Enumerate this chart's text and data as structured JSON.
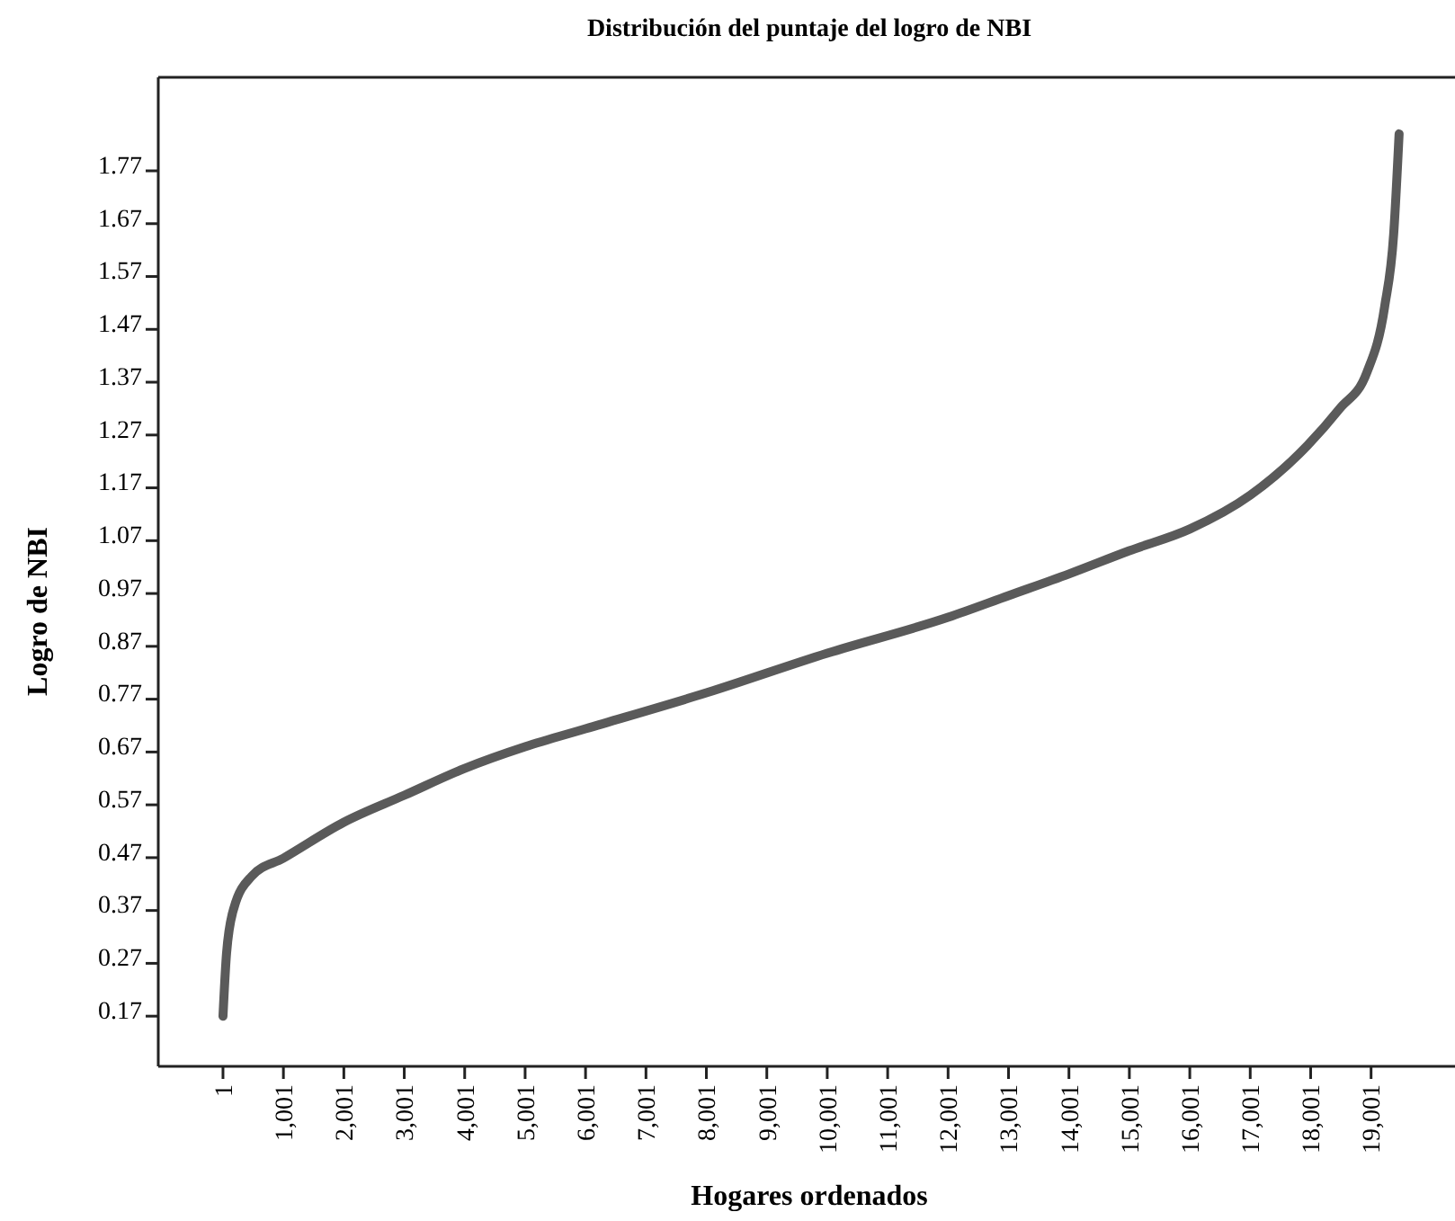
{
  "chart_data": {
    "type": "line",
    "title": "Distribución del puntaje del logro de NBI",
    "xlabel": "Hogares ordenados",
    "ylabel": "Logro de NBI",
    "xlim": [
      -1070,
      20390
    ],
    "ylim": [
      0.075,
      1.947
    ],
    "xticks": [
      {
        "value": 1,
        "label": "1"
      },
      {
        "value": 1001,
        "label": "1,001"
      },
      {
        "value": 2001,
        "label": "2,001"
      },
      {
        "value": 3001,
        "label": "3,001"
      },
      {
        "value": 4001,
        "label": "4,001"
      },
      {
        "value": 5001,
        "label": "5,001"
      },
      {
        "value": 6001,
        "label": "6,001"
      },
      {
        "value": 7001,
        "label": "7,001"
      },
      {
        "value": 8001,
        "label": "8,001"
      },
      {
        "value": 9001,
        "label": "9,001"
      },
      {
        "value": 10001,
        "label": "10,001"
      },
      {
        "value": 11001,
        "label": "11,001"
      },
      {
        "value": 12001,
        "label": "12,001"
      },
      {
        "value": 13001,
        "label": "13,001"
      },
      {
        "value": 14001,
        "label": "14,001"
      },
      {
        "value": 15001,
        "label": "15,001"
      },
      {
        "value": 16001,
        "label": "16,001"
      },
      {
        "value": 17001,
        "label": "17,001"
      },
      {
        "value": 18001,
        "label": "18,001"
      },
      {
        "value": 19001,
        "label": "19,001"
      }
    ],
    "yticks": [
      0.17,
      0.27,
      0.37,
      0.47,
      0.57,
      0.67,
      0.77,
      0.87,
      0.97,
      1.07,
      1.17,
      1.27,
      1.37,
      1.47,
      1.57,
      1.67,
      1.77
    ],
    "grid": false,
    "marker": "none",
    "line_style": "solid",
    "x": [
      1,
      60,
      180,
      477,
      1001,
      2001,
      3001,
      4001,
      5001,
      6001,
      8001,
      10001,
      12001,
      13001,
      14001,
      15001,
      16001,
      17001,
      17947,
      18483,
      18930,
      19226,
      19375,
      19465
    ],
    "series": [
      {
        "color": "#5a5a5a",
        "values": [
          0.17,
          0.289,
          0.374,
          0.435,
          0.469,
          0.537,
          0.588,
          0.639,
          0.68,
          0.714,
          0.782,
          0.857,
          0.925,
          0.966,
          1.007,
          1.051,
          1.092,
          1.156,
          1.25,
          1.32,
          1.388,
          1.513,
          1.65,
          1.84
        ]
      }
    ]
  }
}
